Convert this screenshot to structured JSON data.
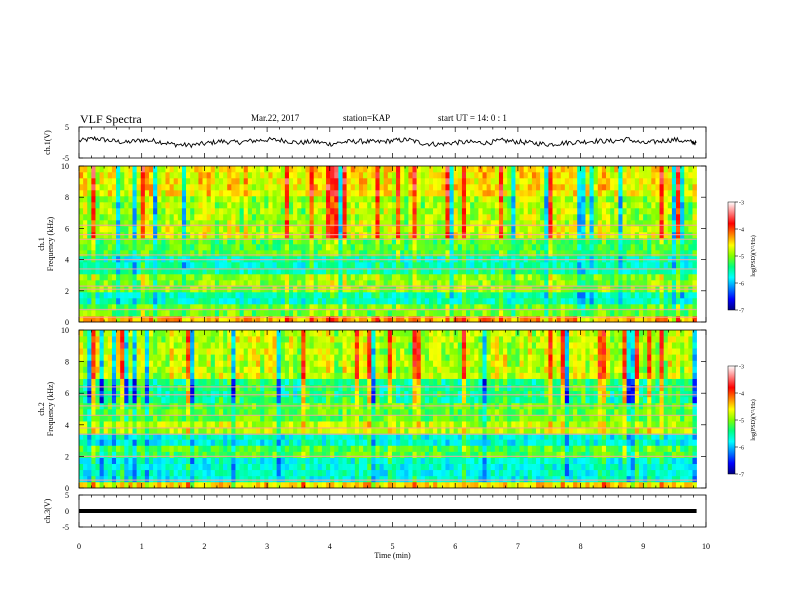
{
  "header": {
    "title": "VLF Spectra",
    "date": "Mar.22, 2017",
    "station": "station=KAP",
    "start_ut": "start UT =  14: 0 : 1"
  },
  "colors": {
    "scale": [
      "#000080",
      "#0000ff",
      "#0080ff",
      "#00ffff",
      "#00ff80",
      "#80ff00",
      "#ffff00",
      "#ff8000",
      "#ff0000",
      "#ff8080",
      "#ffffff"
    ]
  },
  "chart_data": [
    {
      "type": "line",
      "id": "ch1-waveform",
      "ylabel": "ch.1(V)",
      "ylim": [
        -5,
        5
      ],
      "yticks": [
        "5",
        "-5"
      ],
      "xlim": [
        0,
        10
      ],
      "series": [
        {
          "x": [
            0,
            0.25,
            0.5,
            0.75,
            1.0,
            1.25,
            1.5,
            1.75,
            2.0,
            2.25,
            2.5,
            2.75,
            3.0,
            3.25,
            3.5,
            3.75,
            4.0,
            4.25,
            4.5,
            4.75,
            5.0,
            5.25,
            5.5,
            5.75,
            6.0,
            6.25,
            6.5,
            6.75,
            7.0,
            7.25,
            7.5,
            7.75,
            8.0,
            8.25,
            8.5,
            8.75,
            9.0,
            9.25,
            9.5,
            9.75,
            9.85
          ],
          "values": [
            0.5,
            1.3,
            0.6,
            0.0,
            0.8,
            0.4,
            -0.6,
            -0.9,
            -0.4,
            0.4,
            0.0,
            0.5,
            0.9,
            0.7,
            -0.1,
            0.3,
            -0.5,
            0.2,
            0.4,
            0.1,
            0.6,
            0.9,
            -0.3,
            -0.6,
            0.0,
            0.1,
            -0.1,
            0.6,
            0.2,
            -0.2,
            -0.6,
            -0.1,
            0.2,
            0.5,
            0.4,
            1.1,
            -0.3,
            0.4,
            0.9,
            0.2,
            -0.2
          ]
        }
      ]
    },
    {
      "type": "heatmap",
      "id": "ch1-spectrogram",
      "ylabel": "ch.1\nFrequency (kHz)",
      "ylim": [
        0,
        10
      ],
      "yticks": [
        "0",
        "2",
        "4",
        "6",
        "8",
        "10"
      ],
      "xlim": [
        0,
        9.85
      ],
      "colorbar": {
        "label": "log(PSD)(V²/Hz)",
        "range": [
          -7,
          -3
        ],
        "ticks": [
          "-3",
          "-4",
          "-5",
          "-6",
          "-7"
        ]
      },
      "bands": [
        {
          "from": 0,
          "to": 0.5,
          "level": -4.3
        },
        {
          "from": 0.5,
          "to": 1.2,
          "level": -5.1
        },
        {
          "from": 1.2,
          "to": 2.0,
          "level": -5.6
        },
        {
          "from": 2.0,
          "to": 3.0,
          "level": -5.0
        },
        {
          "from": 3.0,
          "to": 3.6,
          "level": -5.5
        },
        {
          "from": 3.6,
          "to": 4.2,
          "level": -5.6
        },
        {
          "from": 4.2,
          "to": 5.2,
          "level": -5.2
        },
        {
          "from": 5.2,
          "to": 6.0,
          "level": -4.8
        },
        {
          "from": 6.0,
          "to": 8.0,
          "level": -4.9
        },
        {
          "from": 8.0,
          "to": 10.0,
          "level": -4.6
        }
      ],
      "lines_khz": [
        0.3,
        0.8,
        2.1,
        2.3,
        3.4,
        4.0,
        4.3,
        5.3,
        5.6,
        6.2
      ]
    },
    {
      "type": "heatmap",
      "id": "ch2-spectrogram",
      "ylabel": "ch.2\nFrequency (kHz)",
      "ylim": [
        0,
        10
      ],
      "yticks": [
        "0",
        "2",
        "4",
        "6",
        "8",
        "10"
      ],
      "xlim": [
        0,
        9.85
      ],
      "colorbar": {
        "label": "log(PSD)(V²/Hz)",
        "range": [
          -7,
          -3
        ],
        "ticks": [
          "-3",
          "-4",
          "-5",
          "-6",
          "-7"
        ]
      },
      "bands": [
        {
          "from": 0,
          "to": 0.5,
          "level": -4.5
        },
        {
          "from": 0.5,
          "to": 1.8,
          "level": -5.7
        },
        {
          "from": 1.8,
          "to": 2.6,
          "level": -5.2
        },
        {
          "from": 2.6,
          "to": 3.6,
          "level": -5.7
        },
        {
          "from": 3.6,
          "to": 4.4,
          "level": -4.8
        },
        {
          "from": 4.4,
          "to": 5.5,
          "level": -5.1
        },
        {
          "from": 5.5,
          "to": 7.0,
          "level": -5.4
        },
        {
          "from": 7.0,
          "to": 10.0,
          "level": -4.8
        }
      ],
      "lines_khz": [
        0.5,
        2.0,
        3.4,
        3.8,
        4.6,
        5.2,
        5.9,
        6.4
      ]
    },
    {
      "type": "line",
      "id": "ch3-waveform",
      "ylabel": "ch.3(V)",
      "ylim": [
        -5,
        5
      ],
      "yticks": [
        "5",
        "0",
        "-5"
      ],
      "xlim": [
        0,
        10
      ],
      "xlabel": "Time  (min)",
      "xticks": [
        "0",
        "1",
        "2",
        "3",
        "4",
        "5",
        "6",
        "7",
        "8",
        "9",
        "10"
      ],
      "series": [
        {
          "x": [
            0,
            9.85
          ],
          "values": [
            0,
            0
          ]
        }
      ]
    }
  ]
}
